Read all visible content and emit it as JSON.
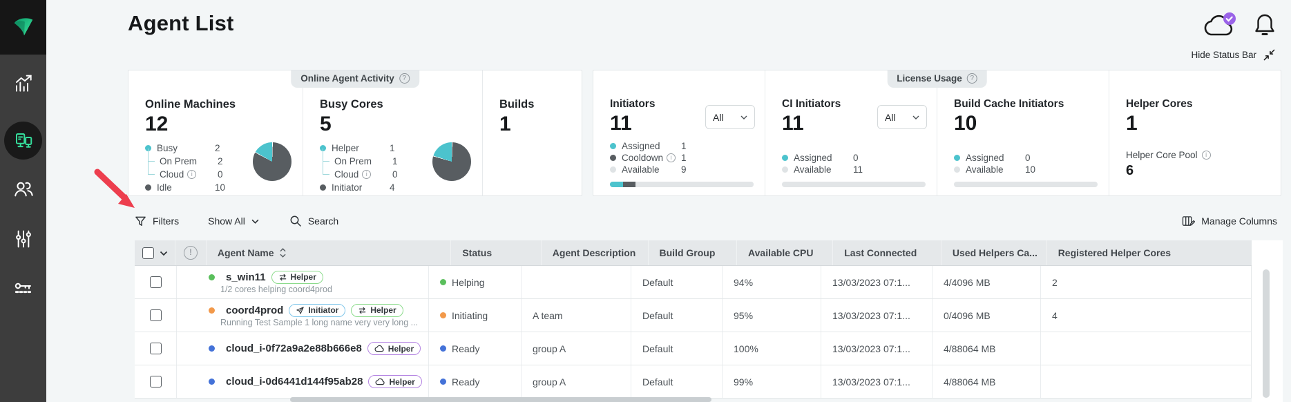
{
  "colors": {
    "accent_teal": "#4cc3cd",
    "slice_dark": "#585d61",
    "slice_light": "#dfe3e5",
    "status_green": "#5abf5c",
    "status_orange": "#f2994a",
    "status_blue": "#4472d8",
    "annotation_red": "#ed3e4e",
    "sidebar_active_green": "#35dd9b"
  },
  "header": {
    "title": "Agent List",
    "hide_status_bar": "Hide Status Bar"
  },
  "status_bar": {
    "online_activity": {
      "label": "Online Agent Activity",
      "metrics": [
        {
          "name": "Online Machines",
          "value": "12",
          "pie_deg": 60,
          "legend": [
            {
              "label": "Busy",
              "value": "2"
            },
            {
              "label": "On Prem",
              "value": "2"
            },
            {
              "label": "Cloud",
              "value": "0"
            },
            {
              "label": "Idle",
              "value": "10"
            }
          ]
        },
        {
          "name": "Busy Cores",
          "value": "5",
          "pie_deg": 72,
          "legend": [
            {
              "label": "Helper",
              "value": "1"
            },
            {
              "label": "On Prem",
              "value": "1"
            },
            {
              "label": "Cloud",
              "value": "0"
            },
            {
              "label": "Initiator",
              "value": "4"
            }
          ]
        },
        {
          "name": "Builds",
          "value": "1"
        }
      ]
    },
    "license_usage": {
      "label": "License Usage",
      "metrics": [
        {
          "name": "Initiators",
          "value": "11",
          "filter": "All",
          "legend": [
            {
              "label": "Assigned",
              "value": "1"
            },
            {
              "label": "Cooldown",
              "value": "1"
            },
            {
              "label": "Available",
              "value": "9"
            }
          ],
          "bar": [
            {
              "color": "#4cc3cd",
              "pct": 9
            },
            {
              "color": "#585d61",
              "pct": 9
            },
            {
              "color": "#e2e5e7",
              "pct": 82
            }
          ]
        },
        {
          "name": "CI Initiators",
          "value": "11",
          "filter": "All",
          "legend": [
            {
              "label": "Assigned",
              "value": "0"
            },
            {
              "label": "Available",
              "value": "11"
            }
          ],
          "bar": [
            {
              "color": "#e2e5e7",
              "pct": 100
            }
          ]
        },
        {
          "name": "Build Cache Initiators",
          "value": "10",
          "legend": [
            {
              "label": "Assigned",
              "value": "0"
            },
            {
              "label": "Available",
              "value": "10"
            }
          ],
          "bar": [
            {
              "color": "#e2e5e7",
              "pct": 100
            }
          ]
        },
        {
          "name": "Helper Cores",
          "value": "1",
          "pool_label": "Helper Core Pool",
          "pool_value": "6"
        }
      ]
    }
  },
  "toolbar": {
    "filters": "Filters",
    "show_all": "Show All",
    "search": "Search",
    "manage_columns": "Manage Columns"
  },
  "table": {
    "columns": {
      "agent": "Agent Name",
      "status": "Status",
      "description": "Agent Description",
      "build_group": "Build Group",
      "cpu": "Available CPU",
      "last_connected": "Last Connected",
      "used_helpers": "Used Helpers Ca...",
      "registered": "Registered Helper Cores"
    },
    "rows": [
      {
        "name": "s_win11",
        "badges": [
          {
            "label": "Helper"
          }
        ],
        "subtitle": "1/2 cores helping coord4prod",
        "status": "Helping",
        "description": "",
        "build_group": "Default",
        "cpu": "94%",
        "last_connected": "13/03/2023 07:1...",
        "used_helpers": "4/4096 MB",
        "registered": "2"
      },
      {
        "name": "coord4prod",
        "badges": [
          {
            "label": "Initiator"
          },
          {
            "label": "Helper"
          }
        ],
        "subtitle": "Running Test Sample 1 long name very very long ...",
        "status": "Initiating",
        "description": "A team",
        "build_group": "Default",
        "cpu": "95%",
        "last_connected": "13/03/2023 07:1...",
        "used_helpers": "0/4096 MB",
        "registered": "4"
      },
      {
        "name": "cloud_i-0f72a9a2e88b666e8",
        "badges": [
          {
            "label": "Helper"
          }
        ],
        "subtitle": "",
        "status": "Ready",
        "description": "group A",
        "build_group": "Default",
        "cpu": "100%",
        "last_connected": "13/03/2023 07:1...",
        "used_helpers": "4/88064 MB",
        "registered": ""
      },
      {
        "name": "cloud_i-0d6441d144f95ab28",
        "badges": [
          {
            "label": "Helper"
          }
        ],
        "subtitle": "",
        "status": "Ready",
        "description": "group A",
        "build_group": "Default",
        "cpu": "99%",
        "last_connected": "13/03/2023 07:1...",
        "used_helpers": "4/88064 MB",
        "registered": ""
      }
    ]
  }
}
